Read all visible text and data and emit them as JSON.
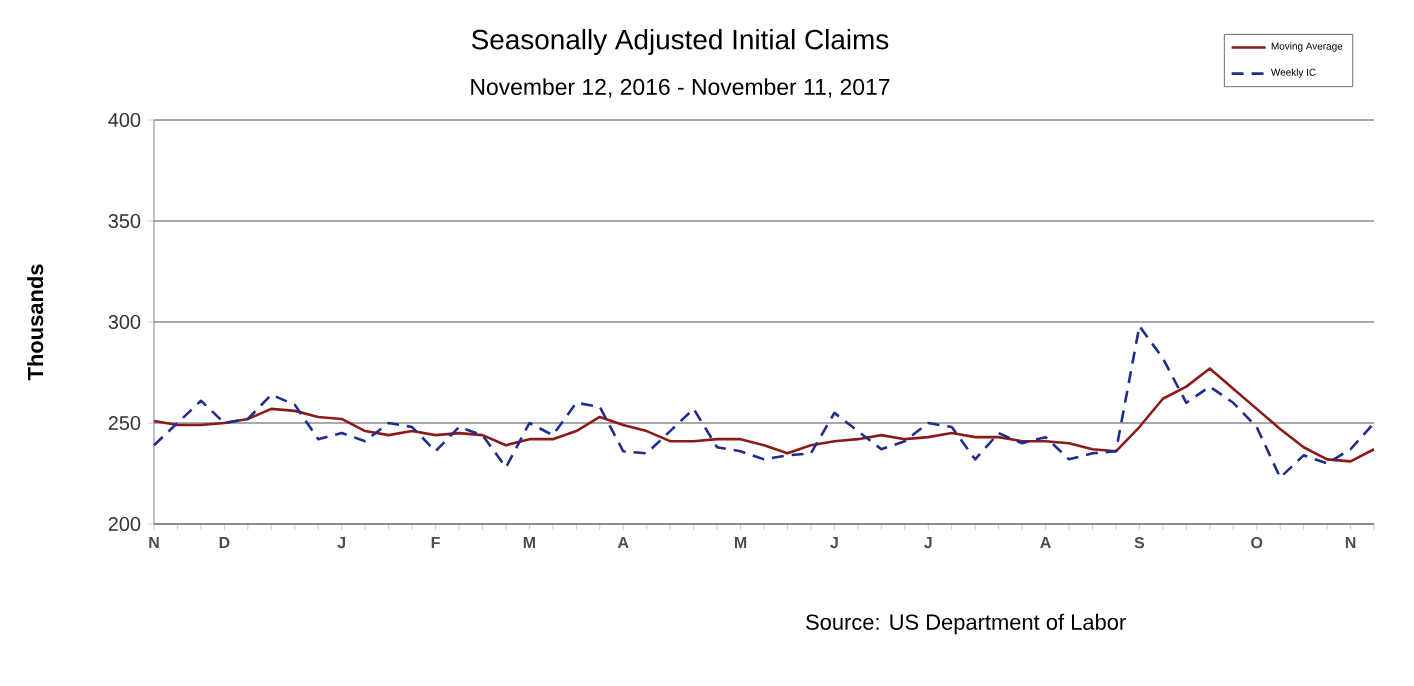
{
  "chart_data": {
    "type": "line",
    "title": "Seasonally Adjusted Initial Claims",
    "subtitle": "November 12, 2016  -  November 11, 2017",
    "ylabel": "Thousands",
    "categories": [
      "N",
      null,
      null,
      "D",
      null,
      null,
      null,
      null,
      "J",
      null,
      null,
      null,
      "F",
      null,
      null,
      null,
      "M",
      null,
      null,
      null,
      "A",
      null,
      null,
      null,
      null,
      "M",
      null,
      null,
      null,
      "J",
      null,
      null,
      null,
      "J",
      null,
      null,
      null,
      null,
      "A",
      null,
      null,
      null,
      "S",
      null,
      null,
      null,
      null,
      "O",
      null,
      null,
      null,
      "N",
      null
    ],
    "series": [
      {
        "name": "Moving Average",
        "color": "#8b1a1a",
        "line_style": "solid",
        "values": [
          251,
          249,
          249,
          250,
          252,
          257,
          256,
          253,
          252,
          246,
          244,
          246,
          244,
          245,
          244,
          239,
          242,
          242,
          246,
          253,
          249,
          246,
          241,
          241,
          242,
          242,
          239,
          235,
          239,
          241,
          242,
          244,
          242,
          243,
          245,
          243,
          243,
          241,
          241,
          240,
          237,
          236,
          248,
          262,
          268,
          277,
          267,
          257,
          247,
          238,
          232,
          231,
          237
        ]
      },
      {
        "name": "Weekly IC",
        "color": "#1f2d8c",
        "line_style": "dashed",
        "values": [
          239,
          250,
          261,
          250,
          252,
          264,
          259,
          242,
          245,
          241,
          250,
          248,
          236,
          248,
          244,
          228,
          250,
          244,
          260,
          258,
          236,
          235,
          246,
          257,
          238,
          236,
          232,
          234,
          235,
          255,
          246,
          237,
          241,
          250,
          248,
          232,
          245,
          240,
          243,
          232,
          235,
          236,
          298,
          282,
          260,
          268,
          260,
          248,
          223,
          234,
          230,
          237,
          250
        ]
      }
    ],
    "ylim": [
      200,
      400
    ],
    "yticks": [
      200,
      250,
      300,
      350,
      400
    ],
    "grid": "y",
    "legend": "top right",
    "marker": "none",
    "annotations": [
      "Source: US Department of Labor"
    ]
  }
}
